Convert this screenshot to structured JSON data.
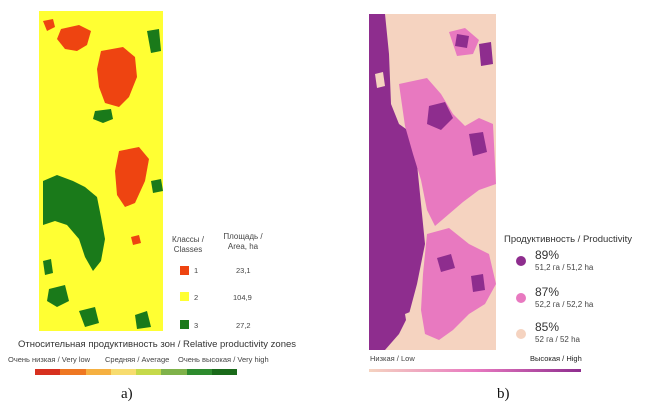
{
  "panel_a": {
    "legend": {
      "header_classes": "Классы / Classes",
      "header_area": "Площадь / Area, ha",
      "rows": [
        {
          "class": "1",
          "area": "23,1",
          "color": "#ee4411"
        },
        {
          "class": "2",
          "area": "104,9",
          "color": "#ffff33"
        },
        {
          "class": "3",
          "area": "27,2",
          "color": "#1a7a1a"
        }
      ]
    },
    "zones_title": "Относительная продуктивность зон  / Relative productivity zones",
    "scale_labels": {
      "low": "Очень низкая / Very low",
      "avg": "Средняя / Average",
      "high": "Очень высокая / Very high"
    },
    "gradient_colors": [
      "#d7301f",
      "#ee7722",
      "#f5b041",
      "#f7dc6f",
      "#c5d94a",
      "#7fb24a",
      "#2e8b2e",
      "#1a6a1a"
    ],
    "label": "a)"
  },
  "panel_b": {
    "legend_title": "Продуктивность / Productivity",
    "items": [
      {
        "pct": "89%",
        "area": "51,2 га / 51,2 ha",
        "color": "#8e2d8e"
      },
      {
        "pct": "87%",
        "area": "52,2 га / 52,2 ha",
        "color": "#e879c0"
      },
      {
        "pct": "85%",
        "area": "52 га / 52 ha",
        "color": "#f5d3c0"
      }
    ],
    "scale_low": "Низкая / Low",
    "scale_high": "Высокая / High",
    "gradient_colors": [
      "#f5d3c0",
      "#e879c0",
      "#8e2d8e"
    ],
    "label": "b)"
  }
}
